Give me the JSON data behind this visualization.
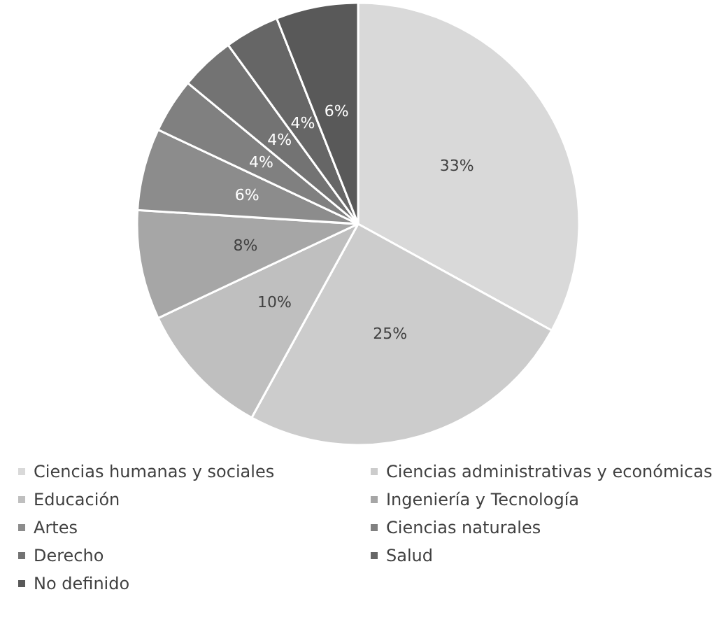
{
  "chart_data": {
    "type": "pie",
    "categories": [
      "Ciencias humanas y sociales",
      "Ciencias administrativas y económicas",
      "Educación",
      "Ingeniería y Tecnología",
      "Artes",
      "Ciencias naturales",
      "Derecho",
      "Salud",
      "No definido"
    ],
    "values": [
      33,
      25,
      10,
      8,
      6,
      4,
      4,
      4,
      6
    ],
    "colors": [
      "#d9d9d9",
      "#cccccc",
      "#bfbfbf",
      "#a6a6a6",
      "#8c8c8c",
      "#808080",
      "#737373",
      "#666666",
      "#595959"
    ],
    "value_labels": [
      "33%",
      "25%",
      "10%",
      "8%",
      "6%",
      "4%",
      "4%",
      "4%",
      "6%"
    ],
    "legend": "bottom"
  }
}
